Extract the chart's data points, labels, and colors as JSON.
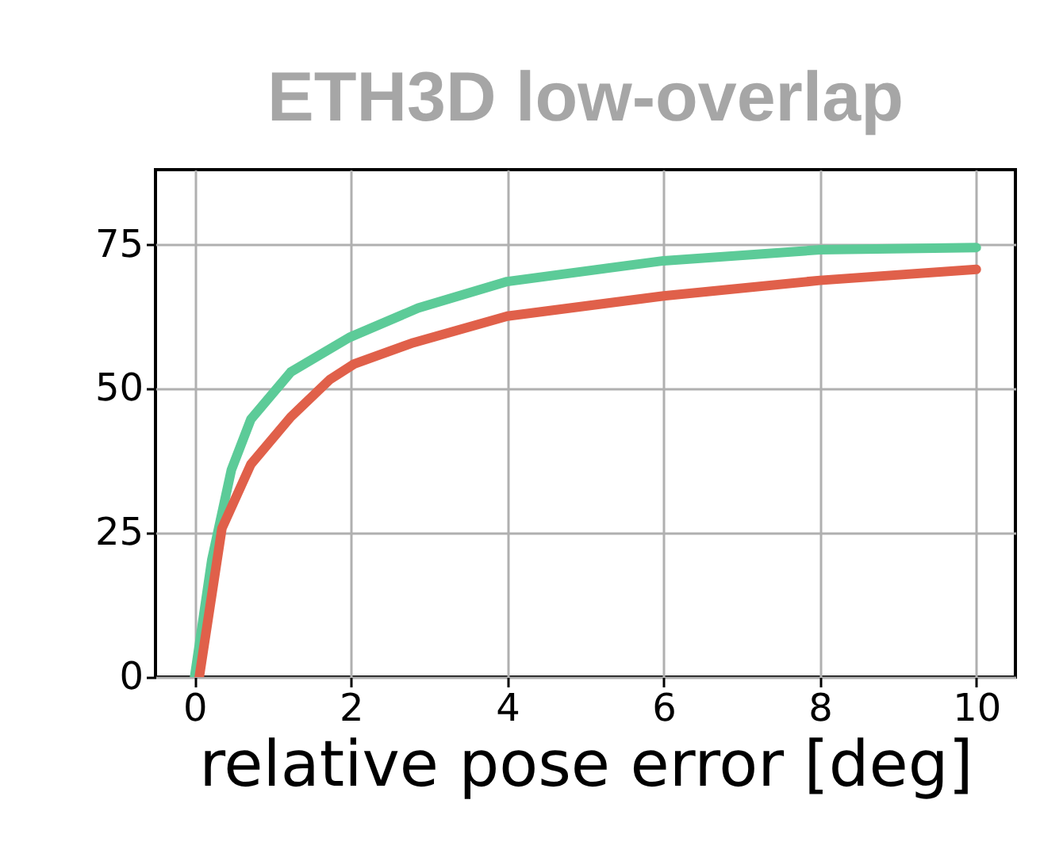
{
  "chart_data": {
    "type": "line",
    "title": "ETH3D low-overlap",
    "xlabel": "relative pose error [deg]",
    "xlim": [
      -0.5,
      10.5
    ],
    "xticks": [
      0,
      2,
      4,
      6,
      8,
      10
    ],
    "ylim": [
      0,
      88
    ],
    "yticks": [
      0,
      25,
      50,
      75
    ],
    "grid": true,
    "series": [
      {
        "color": "#5ccb98",
        "x": [
          0,
          0.22,
          0.47,
          0.72,
          1.23,
          1.98,
          2.86,
          4,
          6,
          8,
          10
        ],
        "values": [
          0,
          20.3,
          35.9,
          44.7,
          52.9,
          58.9,
          64,
          68.6,
          72.2,
          74.1,
          74.5
        ]
      },
      {
        "color": "#e0604a",
        "x": [
          0.06,
          0.35,
          0.72,
          1.23,
          1.73,
          2.04,
          2.8,
          4,
          6,
          8,
          10
        ],
        "values": [
          0,
          25.8,
          36.9,
          45.1,
          51.6,
          54.3,
          58,
          62.6,
          66.1,
          68.8,
          70.7
        ]
      }
    ]
  }
}
